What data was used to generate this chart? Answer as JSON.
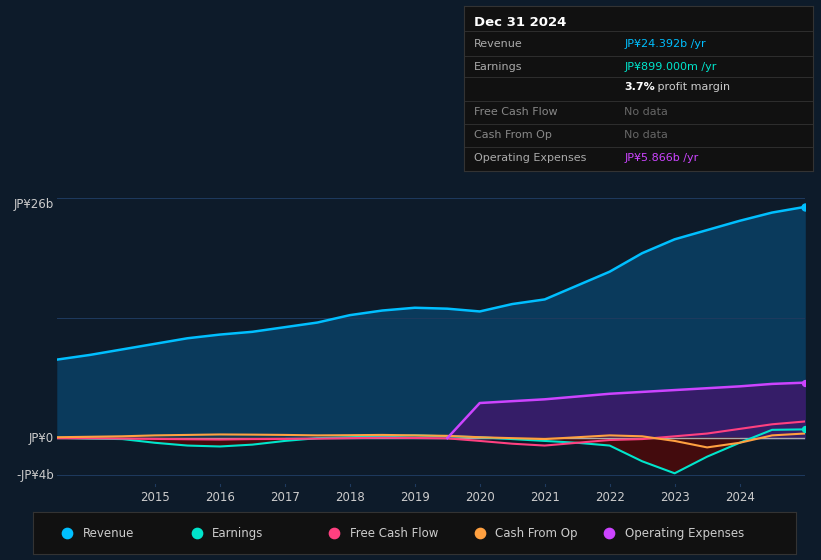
{
  "bg_color": "#0d1b2a",
  "plot_bg_color": "#0d1b2a",
  "grid_color": "#1e3a5f",
  "text_color": "#cccccc",
  "title_color": "#ffffff",
  "x_years": [
    2013.5,
    2014,
    2014.5,
    2015,
    2015.5,
    2016,
    2016.5,
    2017,
    2017.5,
    2018,
    2018.5,
    2019,
    2019.5,
    2020,
    2020.5,
    2021,
    2021.5,
    2022,
    2022.5,
    2023,
    2023.5,
    2024,
    2024.5,
    2025.0
  ],
  "revenue": [
    8500000000.0,
    9000000000.0,
    9600000000.0,
    10200000000.0,
    10800000000.0,
    11200000000.0,
    11500000000.0,
    12000000000.0,
    12500000000.0,
    13300000000.0,
    13800000000.0,
    14100000000.0,
    14000000000.0,
    13700000000.0,
    14500000000.0,
    15000000000.0,
    16500000000.0,
    18000000000.0,
    20000000000.0,
    21500000000.0,
    22500000000.0,
    23500000000.0,
    24392000000.0,
    25000000000.0
  ],
  "earnings": [
    50000000.0,
    -50000000.0,
    -100000000.0,
    -500000000.0,
    -800000000.0,
    -900000000.0,
    -700000000.0,
    -300000000.0,
    0.0,
    100000000.0,
    200000000.0,
    300000000.0,
    200000000.0,
    100000000.0,
    -100000000.0,
    -300000000.0,
    -500000000.0,
    -800000000.0,
    -2500000000.0,
    -3800000000.0,
    -2000000000.0,
    -500000000.0,
    899000000.0,
    950000000.0
  ],
  "free_cash_flow": [
    0.0,
    -20000000.0,
    -50000000.0,
    -80000000.0,
    -120000000.0,
    -150000000.0,
    -100000000.0,
    -80000000.0,
    -50000000.0,
    0.0,
    50000000.0,
    20000000.0,
    -20000000.0,
    -300000000.0,
    -600000000.0,
    -800000000.0,
    -500000000.0,
    -200000000.0,
    -100000000.0,
    200000000.0,
    500000000.0,
    1000000000.0,
    1500000000.0,
    1800000000.0
  ],
  "cash_from_op": [
    100000000.0,
    150000000.0,
    200000000.0,
    300000000.0,
    350000000.0,
    400000000.0,
    380000000.0,
    350000000.0,
    300000000.0,
    320000000.0,
    350000000.0,
    300000000.0,
    250000000.0,
    100000000.0,
    0.0,
    -100000000.0,
    100000000.0,
    300000000.0,
    200000000.0,
    -300000000.0,
    -1000000000.0,
    -500000000.0,
    300000000.0,
    500000000.0
  ],
  "op_expenses_x": [
    2019.5,
    2020,
    2020.5,
    2021,
    2021.5,
    2022,
    2022.5,
    2023,
    2023.5,
    2024,
    2024.5,
    2025.0
  ],
  "op_expenses": [
    0.0,
    3800000000.0,
    4000000000.0,
    4200000000.0,
    4500000000.0,
    4800000000.0,
    5000000000.0,
    5200000000.0,
    5400000000.0,
    5600000000.0,
    5866000000.0,
    6000000000.0
  ],
  "revenue_color": "#00bfff",
  "earnings_color": "#00e5cc",
  "free_cash_flow_color": "#ff4080",
  "cash_from_op_color": "#ffa040",
  "op_expenses_color": "#cc44ff",
  "revenue_fill_color": "#0a3a5c",
  "op_expenses_fill_color": "#3a1a6a",
  "earnings_neg_fill_color": "#4a0a0a",
  "zero_line_color": "#aaaaaa",
  "legend_items": [
    {
      "label": "Revenue",
      "color": "#00bfff"
    },
    {
      "label": "Earnings",
      "color": "#00e5cc"
    },
    {
      "label": "Free Cash Flow",
      "color": "#ff4080"
    },
    {
      "label": "Cash From Op",
      "color": "#ffa040"
    },
    {
      "label": "Operating Expenses",
      "color": "#cc44ff"
    }
  ],
  "info_box_title": "Dec 31 2024",
  "info_rows": [
    {
      "label": "Revenue",
      "value": "JP¥24.392b /yr",
      "value_color": "#00bfff",
      "dimmed": false
    },
    {
      "label": "Earnings",
      "value": "JP¥899.000m /yr",
      "value_color": "#00e5cc",
      "dimmed": false
    },
    {
      "label": "",
      "value": "3.7% profit margin",
      "value_color": "#ffffff",
      "dimmed": false,
      "bold_prefix": "3.7%"
    },
    {
      "label": "Free Cash Flow",
      "value": "No data",
      "value_color": "#666666",
      "dimmed": true
    },
    {
      "label": "Cash From Op",
      "value": "No data",
      "value_color": "#666666",
      "dimmed": true
    },
    {
      "label": "Operating Expenses",
      "value": "JP¥5.866b /yr",
      "value_color": "#cc44ff",
      "dimmed": false
    }
  ]
}
